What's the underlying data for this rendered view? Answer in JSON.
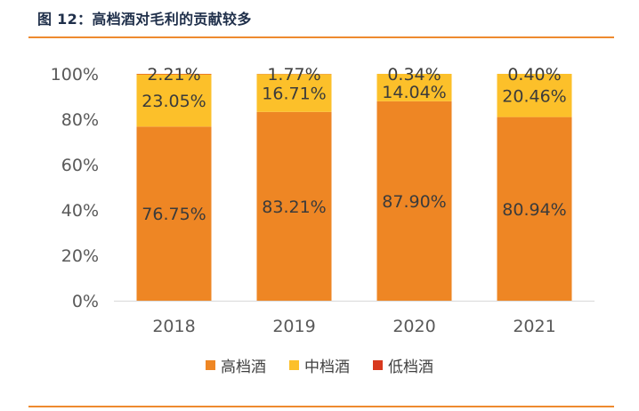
{
  "figure": {
    "title": "图 12：高档酒对毛利的贡献较多"
  },
  "colors": {
    "high": "#ee8624",
    "mid": "#fcc02a",
    "low": "#d8391e",
    "accent_rule": "#ee8a2f",
    "axis_text": "#595959",
    "value_text": "#3b3b3b",
    "axis_line": "#d9d9d9"
  },
  "chart_data": {
    "type": "bar",
    "stacked": true,
    "percent": true,
    "categories": [
      "2018",
      "2019",
      "2020",
      "2021"
    ],
    "series": [
      {
        "name": "高档酒",
        "color": "#ee8624",
        "values": [
          76.75,
          83.21,
          87.9,
          80.94
        ],
        "labels": [
          "76.75%",
          "83.21%",
          "87.90%",
          "80.94%"
        ]
      },
      {
        "name": "中档酒",
        "color": "#fcc02a",
        "values": [
          23.05,
          16.71,
          14.04,
          20.46
        ],
        "labels": [
          "23.05%",
          "16.71%",
          "14.04%",
          "20.46%"
        ]
      },
      {
        "name": "低档酒",
        "color": "#d8391e",
        "values": [
          2.21,
          1.77,
          0.34,
          0.4
        ],
        "labels": [
          "2.21%",
          "1.77%",
          "0.34%",
          "0.40%"
        ]
      }
    ],
    "ylim": [
      0,
      100
    ],
    "yticks": [
      0,
      20,
      40,
      60,
      80,
      100
    ],
    "ytick_labels": [
      "0%",
      "20%",
      "40%",
      "60%",
      "80%",
      "100%"
    ],
    "grid": false,
    "legend_position": "bottom-center",
    "xlabel": "",
    "ylabel": ""
  }
}
